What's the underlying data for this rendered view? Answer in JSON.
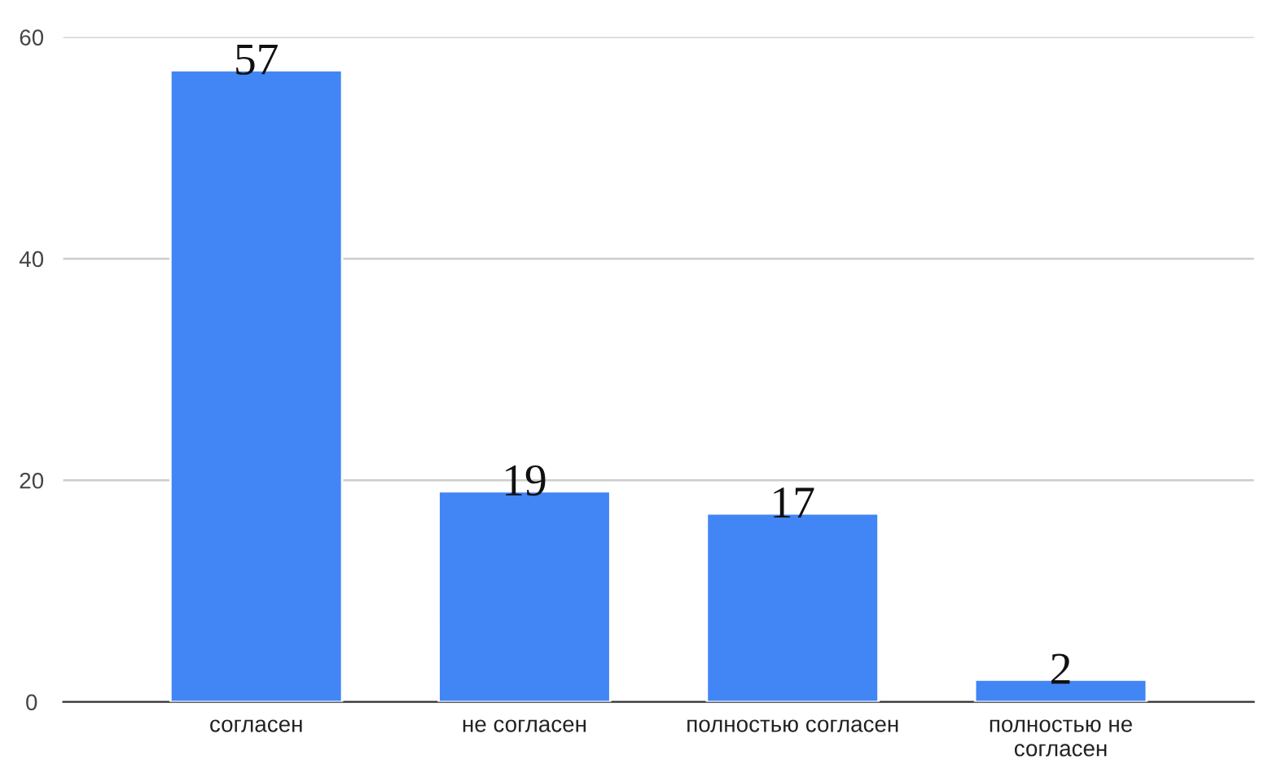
{
  "chart_data": {
    "type": "bar",
    "categories": [
      "согласен",
      "не согласен",
      "полностью согласен",
      "полностью не\nсогласен"
    ],
    "values": [
      57,
      19,
      17,
      2
    ],
    "color": "#4285f4",
    "ylim": [
      0,
      60
    ],
    "yticks": [
      0,
      20,
      40,
      60
    ],
    "grid": "y",
    "data_labels": true,
    "legend": false
  }
}
